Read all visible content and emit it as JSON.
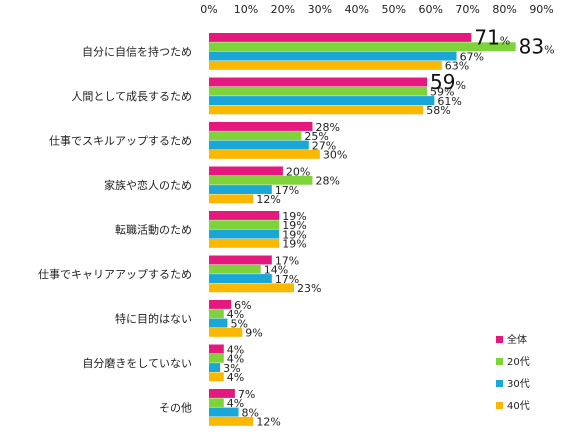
{
  "chart_data": {
    "type": "bar",
    "orientation": "horizontal",
    "xlim": [
      0,
      90
    ],
    "x_ticks": [
      0,
      10,
      20,
      30,
      40,
      50,
      60,
      70,
      80,
      90
    ],
    "x_tick_labels": [
      "0%",
      "10%",
      "20%",
      "30%",
      "40%",
      "50%",
      "60%",
      "70%",
      "80%",
      "90%"
    ],
    "x_axis_position": "top",
    "grid": false,
    "legend_position": "bottom-right",
    "value_suffix": "%",
    "categories": [
      "自分に自信を持つため",
      "人間として成長するため",
      "仕事でスキルアップするため",
      "家族や恋人のため",
      "転職活動のため",
      "仕事でキャリアアップするため",
      "特に目的はない",
      "自分磨きをしていない",
      "その他"
    ],
    "series": [
      {
        "name": "全体",
        "color": "#e5187d",
        "values": [
          71,
          59,
          28,
          20,
          19,
          17,
          6,
          4,
          7
        ]
      },
      {
        "name": "20代",
        "color": "#7ed23a",
        "values": [
          83,
          59,
          25,
          28,
          19,
          14,
          4,
          4,
          4
        ]
      },
      {
        "name": "30代",
        "color": "#1aa7d8",
        "values": [
          67,
          61,
          27,
          17,
          19,
          17,
          5,
          3,
          8
        ]
      },
      {
        "name": "40代",
        "color": "#fbb800",
        "values": [
          63,
          58,
          30,
          12,
          19,
          23,
          9,
          4,
          12
        ]
      }
    ],
    "emphasized_labels": [
      {
        "category_index": 0,
        "series_index": 0
      },
      {
        "category_index": 0,
        "series_index": 1
      },
      {
        "category_index": 1,
        "series_index": 0
      }
    ]
  }
}
